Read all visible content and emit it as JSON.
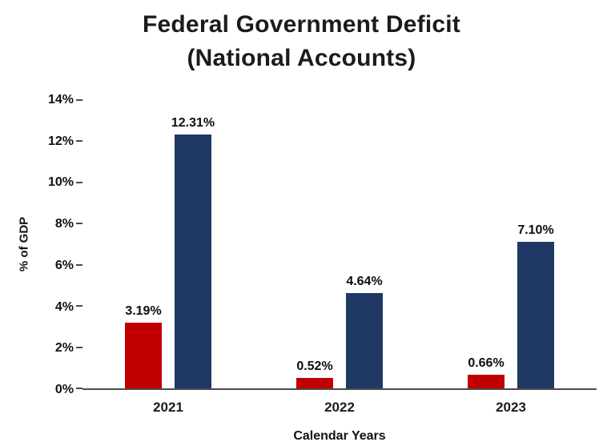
{
  "title": {
    "line1": "Federal Government Deficit",
    "line2": "(National Accounts)"
  },
  "chart_data": {
    "type": "bar",
    "title": "Federal Government Deficit (National Accounts)",
    "categories": [
      "2021",
      "2022",
      "2023"
    ],
    "series": [
      {
        "name": "red-series",
        "color": "#C00000",
        "values": [
          3.19,
          0.52,
          0.66
        ],
        "labels": [
          "3.19%",
          "0.52%",
          "0.66%"
        ]
      },
      {
        "name": "navy-series",
        "color": "#1F3864",
        "values": [
          12.31,
          4.64,
          7.1
        ],
        "labels": [
          "12.31%",
          "4.64%",
          "7.10%"
        ]
      }
    ],
    "xlabel": "Calendar Years",
    "ylabel": "% of GDP",
    "ylim": [
      0,
      14
    ],
    "yticks": [
      0,
      2,
      4,
      6,
      8,
      10,
      12,
      14
    ],
    "ytick_labels": [
      "0%",
      "2%",
      "4%",
      "6%",
      "8%",
      "10%",
      "12%",
      "14%"
    ],
    "grid": false,
    "legend_position": "none",
    "axis_color": "#4a4a4a",
    "background": "#ffffff"
  }
}
